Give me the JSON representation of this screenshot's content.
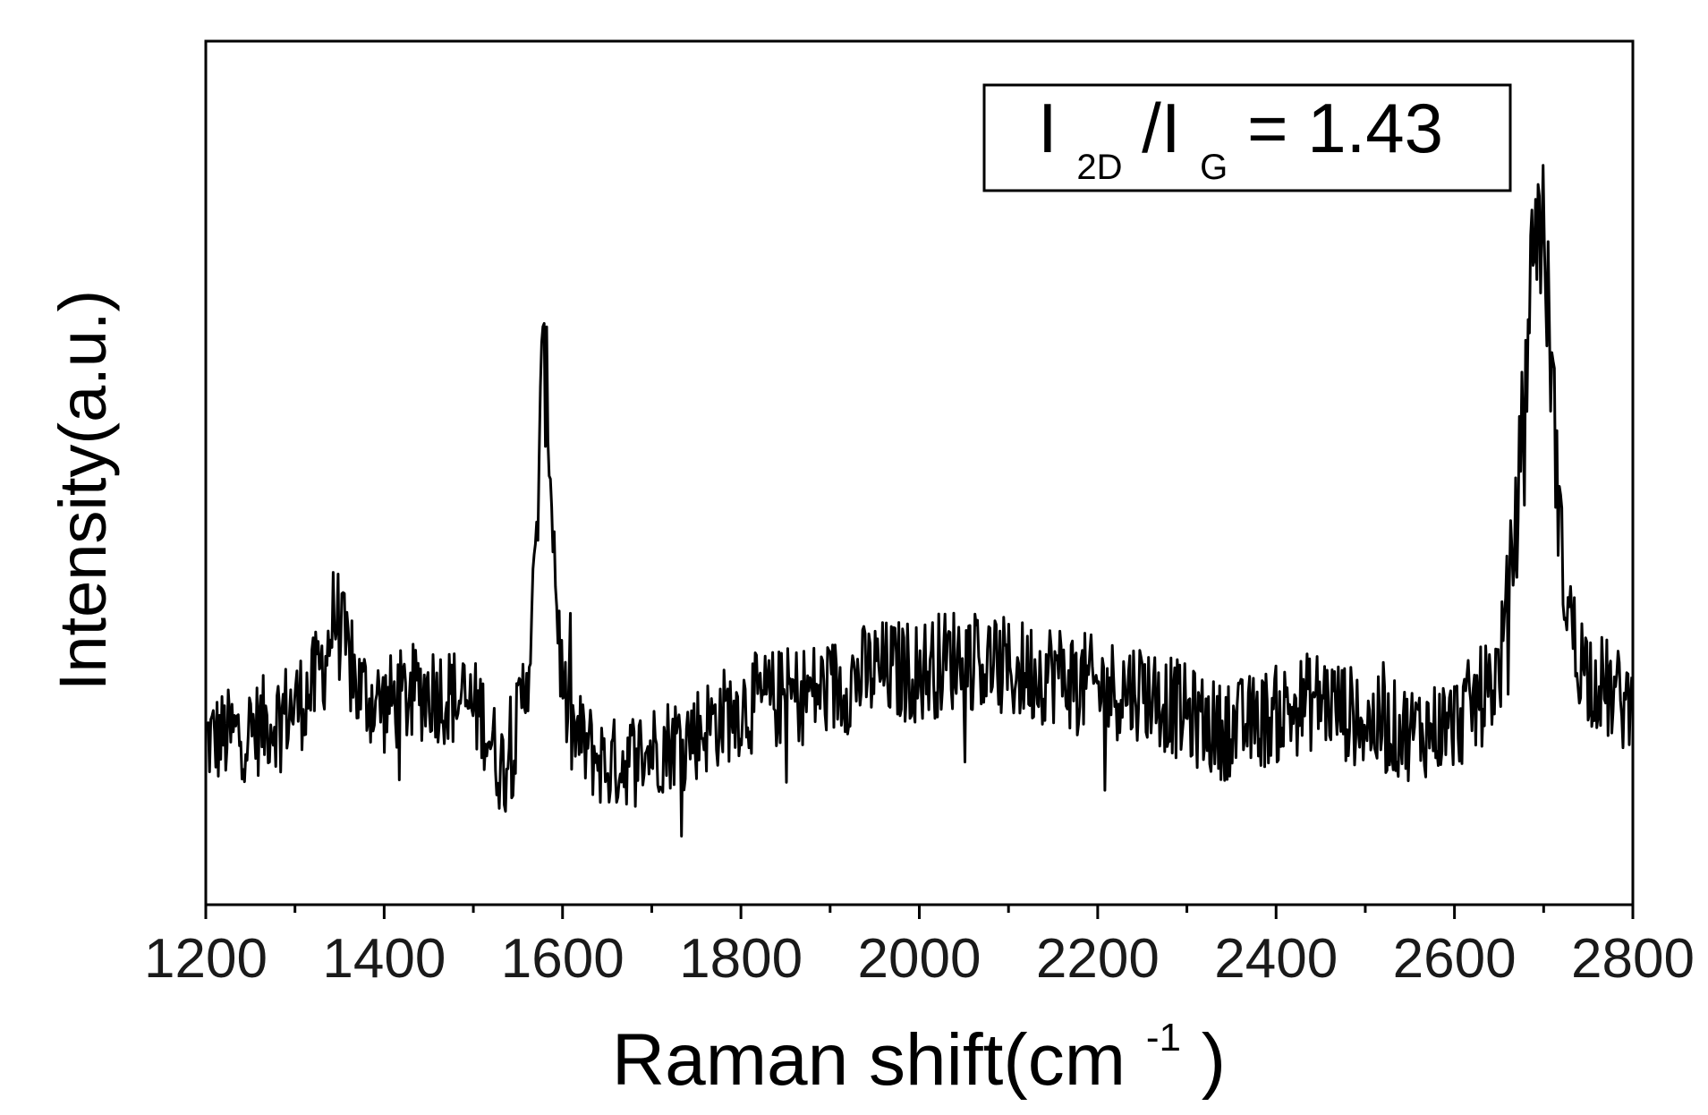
{
  "chart_data": {
    "type": "line",
    "title": "",
    "xlabel": "Raman shift(cm",
    "xlabel_sup": "-1",
    "xlabel_close": ")",
    "ylabel": "Intensity(a.u.)",
    "xlim": [
      1200,
      2800
    ],
    "ylim": [
      0,
      1
    ],
    "x_ticks": [
      1200,
      1400,
      1600,
      1800,
      2000,
      2200,
      2400,
      2600,
      2800
    ],
    "y_ticks_shown": false,
    "grid": false,
    "legend": "none",
    "line_color": "#000000",
    "annotation": {
      "I1": "I",
      "sub1": "2D",
      "slash": "/I",
      "sub2": "G",
      "value": "= 1.43",
      "placement": "top-right"
    },
    "series": [
      {
        "x": [
          1200,
          1250,
          1300,
          1320,
          1335,
          1345,
          1355,
          1370,
          1400,
          1450,
          1480,
          1510,
          1530,
          1545,
          1560,
          1570,
          1575,
          1580,
          1585,
          1592,
          1600,
          1610,
          1650,
          1700,
          1750,
          1800,
          1850,
          1900,
          1950,
          2000,
          2050,
          2100,
          2150,
          2200,
          2250,
          2300,
          2340,
          2400,
          2450,
          2500,
          2550,
          2600,
          2630,
          2650,
          2660,
          2670,
          2680,
          2690,
          2700,
          2710,
          2720,
          2735,
          2750,
          2780,
          2800
        ],
        "y": [
          0.19,
          0.2,
          0.23,
          0.25,
          0.29,
          0.34,
          0.3,
          0.25,
          0.23,
          0.25,
          0.24,
          0.22,
          0.16,
          0.18,
          0.27,
          0.38,
          0.58,
          0.62,
          0.55,
          0.38,
          0.25,
          0.2,
          0.16,
          0.18,
          0.2,
          0.23,
          0.24,
          0.25,
          0.27,
          0.27,
          0.29,
          0.27,
          0.27,
          0.25,
          0.25,
          0.22,
          0.2,
          0.22,
          0.24,
          0.21,
          0.2,
          0.21,
          0.24,
          0.27,
          0.35,
          0.45,
          0.62,
          0.8,
          0.78,
          0.6,
          0.4,
          0.3,
          0.27,
          0.24,
          0.23
        ]
      }
    ]
  }
}
